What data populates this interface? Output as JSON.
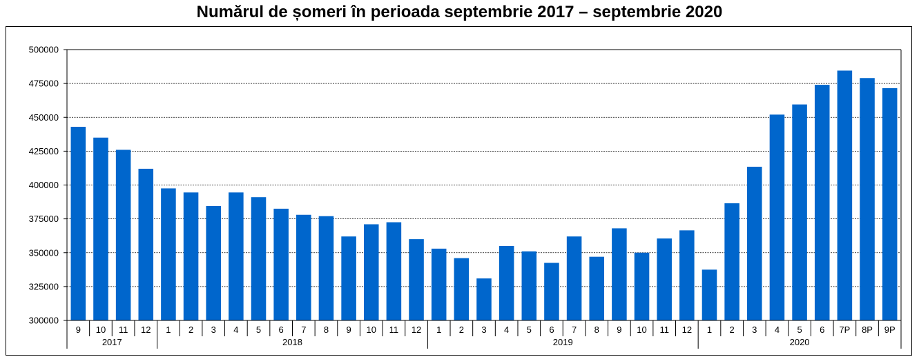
{
  "chart_data": {
    "type": "bar",
    "title": "Numărul de șomeri în perioada septembrie 2017 – septembrie 2020",
    "xlabel": "",
    "ylabel": "",
    "ylim": [
      300000,
      500000
    ],
    "yticks": [
      300000,
      325000,
      350000,
      375000,
      400000,
      425000,
      450000,
      475000,
      500000
    ],
    "grid": true,
    "bar_color": "#0066cc",
    "categories": [
      "9",
      "10",
      "11",
      "12",
      "1",
      "2",
      "3",
      "4",
      "5",
      "6",
      "7",
      "8",
      "9",
      "10",
      "11",
      "12",
      "1",
      "2",
      "3",
      "4",
      "5",
      "6",
      "7",
      "8",
      "9",
      "10",
      "11",
      "12",
      "1",
      "2",
      "3",
      "4",
      "5",
      "6",
      "7P",
      "8P",
      "9P"
    ],
    "values": [
      443000,
      435000,
      426000,
      412000,
      397500,
      394500,
      384500,
      394500,
      391000,
      382500,
      378000,
      377000,
      362000,
      371000,
      372500,
      360000,
      353000,
      346000,
      331000,
      355000,
      351000,
      342500,
      362000,
      347000,
      368000,
      350000,
      360500,
      366500,
      337500,
      386500,
      413500,
      452000,
      459500,
      474000,
      484500,
      479000,
      471500
    ],
    "year_groups": [
      {
        "label": "2017",
        "count": 4
      },
      {
        "label": "2018",
        "count": 12
      },
      {
        "label": "2019",
        "count": 12
      },
      {
        "label": "2020",
        "count": 9
      }
    ]
  }
}
